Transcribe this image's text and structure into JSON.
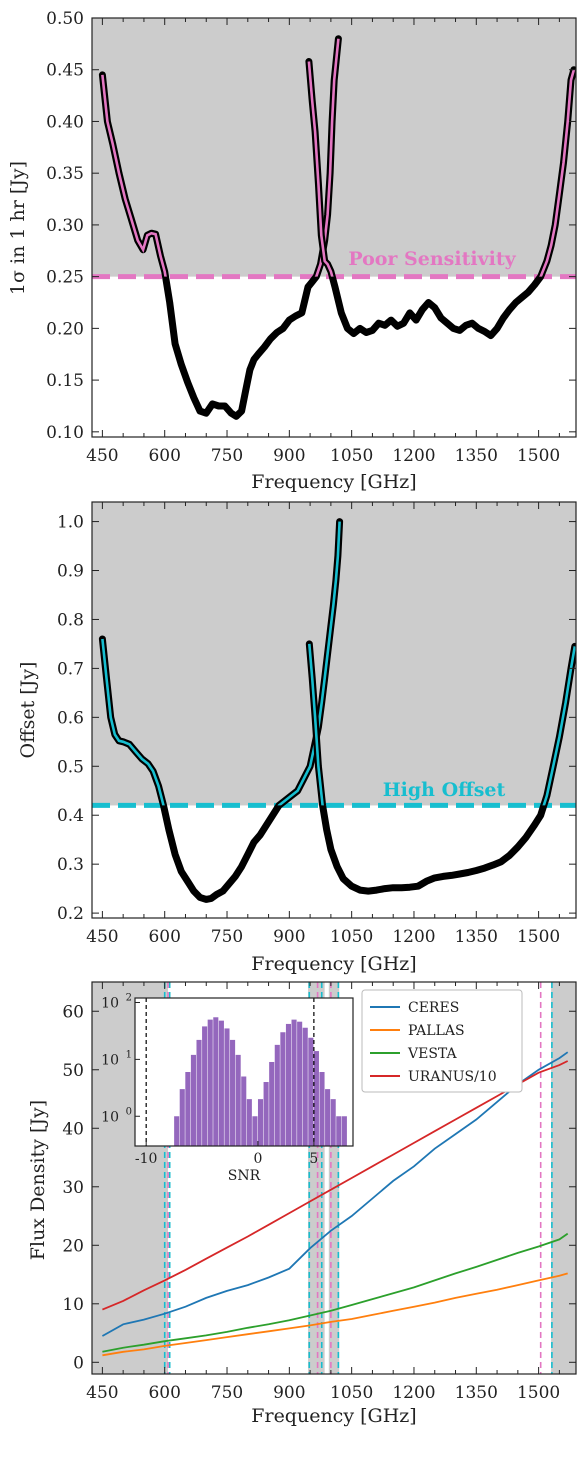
{
  "chart_data": [
    {
      "type": "line",
      "ylabel": "1σ in 1 hr [Jy]",
      "xlabel": "Frequency [GHz]",
      "xlim": [
        425,
        1590
      ],
      "ylim": [
        0.095,
        0.5
      ],
      "xticks": [
        "450",
        "600",
        "750",
        "900",
        "1050",
        "1200",
        "1350",
        "1500"
      ],
      "yticks": [
        "0.10",
        "0.15",
        "0.20",
        "0.25",
        "0.30",
        "0.35",
        "0.40",
        "0.45",
        "0.50"
      ],
      "grid": false,
      "shaded": "above-threshold",
      "shade_color": "#cccccc",
      "threshold": {
        "y": 0.25,
        "label": "Poor Sensitivity",
        "color": "#e377c2"
      },
      "series": [
        {
          "color": "#000000",
          "highlight": "#e377c2",
          "x": [
            450,
            462,
            475,
            490,
            505,
            520,
            535,
            548,
            558,
            568,
            578,
            590,
            600,
            612,
            625,
            640,
            655,
            670,
            685,
            700,
            715,
            730,
            745,
            760,
            772,
            785,
            795,
            805,
            815,
            825,
            840,
            855,
            870,
            885,
            900,
            915,
            930,
            945,
            955,
            965,
            975,
            985,
            992,
            998,
            1003,
            1008,
            1013,
            1018
          ],
          "y": [
            0.445,
            0.4,
            0.378,
            0.35,
            0.325,
            0.305,
            0.285,
            0.276,
            0.29,
            0.292,
            0.291,
            0.27,
            0.255,
            0.225,
            0.185,
            0.165,
            0.148,
            0.133,
            0.12,
            0.118,
            0.127,
            0.125,
            0.125,
            0.118,
            0.115,
            0.12,
            0.14,
            0.16,
            0.17,
            0.175,
            0.182,
            0.19,
            0.196,
            0.2,
            0.208,
            0.212,
            0.215,
            0.24,
            0.245,
            0.25,
            0.262,
            0.285,
            0.31,
            0.35,
            0.4,
            0.44,
            0.46,
            0.48
          ]
        },
        {
          "color": "#000000",
          "highlight": "#e377c2",
          "x": [
            947,
            955,
            962,
            970,
            977,
            985,
            992,
            1000,
            1010,
            1025,
            1040,
            1055,
            1070,
            1085,
            1100,
            1115,
            1130,
            1145,
            1160,
            1175,
            1190,
            1205,
            1220,
            1235,
            1250,
            1265,
            1280,
            1295,
            1310,
            1325,
            1340,
            1355,
            1370,
            1385,
            1400,
            1415,
            1430,
            1445,
            1460,
            1475,
            1490,
            1505,
            1520,
            1530,
            1540,
            1550,
            1560,
            1570,
            1578,
            1585
          ],
          "y": [
            0.458,
            0.42,
            0.39,
            0.34,
            0.29,
            0.265,
            0.262,
            0.255,
            0.24,
            0.215,
            0.2,
            0.195,
            0.2,
            0.196,
            0.198,
            0.205,
            0.203,
            0.208,
            0.202,
            0.205,
            0.215,
            0.208,
            0.218,
            0.225,
            0.22,
            0.21,
            0.205,
            0.2,
            0.198,
            0.203,
            0.205,
            0.2,
            0.197,
            0.193,
            0.2,
            0.21,
            0.218,
            0.225,
            0.23,
            0.235,
            0.242,
            0.25,
            0.265,
            0.28,
            0.3,
            0.33,
            0.36,
            0.4,
            0.44,
            0.45
          ]
        }
      ]
    },
    {
      "type": "line",
      "ylabel": "Offset [Jy]",
      "xlabel": "Frequency [GHz]",
      "xlim": [
        425,
        1590
      ],
      "ylim": [
        0.19,
        1.04
      ],
      "xticks": [
        "450",
        "600",
        "750",
        "900",
        "1050",
        "1200",
        "1350",
        "1500"
      ],
      "yticks": [
        "0.2",
        "0.3",
        "0.4",
        "0.5",
        "0.6",
        "0.7",
        "0.8",
        "0.9",
        "1.0"
      ],
      "grid": false,
      "shaded": "above-threshold",
      "shade_color": "#cccccc",
      "threshold": {
        "y": 0.42,
        "label": "High Offset",
        "color": "#17becf"
      },
      "series": [
        {
          "color": "#000000",
          "highlight": "#17becf",
          "x": [
            450,
            460,
            470,
            480,
            490,
            500,
            515,
            530,
            545,
            560,
            572,
            585,
            597,
            610,
            625,
            640,
            655,
            670,
            685,
            700,
            712,
            725,
            740,
            755,
            770,
            785,
            800,
            815,
            830,
            845,
            860,
            875,
            890,
            905,
            920,
            935,
            950,
            960,
            970,
            978,
            985,
            992,
            999,
            1006,
            1012,
            1017,
            1021
          ],
          "y": [
            0.76,
            0.68,
            0.6,
            0.565,
            0.552,
            0.55,
            0.545,
            0.53,
            0.515,
            0.505,
            0.49,
            0.46,
            0.42,
            0.37,
            0.32,
            0.285,
            0.265,
            0.245,
            0.232,
            0.228,
            0.23,
            0.238,
            0.245,
            0.26,
            0.275,
            0.295,
            0.32,
            0.345,
            0.36,
            0.38,
            0.4,
            0.42,
            0.43,
            0.44,
            0.45,
            0.475,
            0.5,
            0.54,
            0.58,
            0.63,
            0.68,
            0.73,
            0.78,
            0.83,
            0.88,
            0.93,
            1.0
          ]
        },
        {
          "color": "#000000",
          "highlight": "#17becf",
          "x": [
            948,
            955,
            962,
            970,
            980,
            990,
            1000,
            1015,
            1030,
            1050,
            1070,
            1090,
            1110,
            1130,
            1150,
            1170,
            1190,
            1210,
            1230,
            1250,
            1270,
            1290,
            1310,
            1330,
            1350,
            1370,
            1390,
            1410,
            1430,
            1450,
            1470,
            1490,
            1505,
            1520,
            1535,
            1550,
            1565,
            1578,
            1587
          ],
          "y": [
            0.75,
            0.68,
            0.6,
            0.5,
            0.42,
            0.37,
            0.33,
            0.295,
            0.27,
            0.255,
            0.247,
            0.245,
            0.247,
            0.25,
            0.252,
            0.252,
            0.253,
            0.255,
            0.265,
            0.272,
            0.275,
            0.277,
            0.28,
            0.283,
            0.287,
            0.292,
            0.298,
            0.305,
            0.318,
            0.335,
            0.355,
            0.38,
            0.4,
            0.44,
            0.5,
            0.56,
            0.63,
            0.7,
            0.745
          ]
        }
      ]
    },
    {
      "type": "line",
      "ylabel": "Flux Density [Jy]",
      "xlabel": "Frequency [GHz]",
      "xlim": [
        425,
        1590
      ],
      "ylim": [
        -2,
        65
      ],
      "xticks": [
        "450",
        "600",
        "750",
        "900",
        "1050",
        "1200",
        "1350",
        "1500"
      ],
      "yticks": [
        "0",
        "10",
        "20",
        "30",
        "40",
        "50",
        "60"
      ],
      "grid": false,
      "legend": "top-right",
      "shaded_bands": [
        [
          425,
          608
        ],
        [
          945,
          985
        ],
        [
          995,
          1020
        ],
        [
          1530,
          1590
        ]
      ],
      "shade_color": "#cccccc",
      "vlines": [
        {
          "x": 600,
          "color": "#17becf"
        },
        {
          "x": 612,
          "color": "#17becf"
        },
        {
          "x": 608,
          "color": "#e377c2"
        },
        {
          "x": 948,
          "color": "#17becf"
        },
        {
          "x": 968,
          "color": "#e377c2"
        },
        {
          "x": 978,
          "color": "#17becf"
        },
        {
          "x": 1000,
          "color": "#e377c2"
        },
        {
          "x": 1018,
          "color": "#17becf"
        },
        {
          "x": 1505,
          "color": "#e377c2"
        },
        {
          "x": 1532,
          "color": "#17becf"
        }
      ],
      "series": [
        {
          "name": "CERES",
          "color": "#1f77b4",
          "x": [
            450,
            500,
            550,
            600,
            650,
            700,
            750,
            800,
            850,
            900,
            950,
            1000,
            1050,
            1100,
            1150,
            1200,
            1250,
            1300,
            1350,
            1400,
            1450,
            1500,
            1550,
            1570
          ],
          "y": [
            4.5,
            6.5,
            7.3,
            8.3,
            9.5,
            11.0,
            12.2,
            13.2,
            14.5,
            16.0,
            19.5,
            22.5,
            25.0,
            28.0,
            31.0,
            33.5,
            36.5,
            39.0,
            41.5,
            44.5,
            47.5,
            50.0,
            52.0,
            53.0
          ]
        },
        {
          "name": "PALLAS",
          "color": "#ff7f0e",
          "x": [
            450,
            500,
            550,
            600,
            650,
            700,
            750,
            800,
            850,
            900,
            950,
            1000,
            1050,
            1100,
            1150,
            1200,
            1250,
            1300,
            1350,
            1400,
            1450,
            1500,
            1550,
            1570
          ],
          "y": [
            1.2,
            1.8,
            2.2,
            2.8,
            3.3,
            3.8,
            4.3,
            4.8,
            5.3,
            5.8,
            6.3,
            6.9,
            7.4,
            8.1,
            8.8,
            9.5,
            10.2,
            11.0,
            11.7,
            12.4,
            13.2,
            14.0,
            14.8,
            15.2
          ]
        },
        {
          "name": "VESTA",
          "color": "#2ca02c",
          "x": [
            450,
            500,
            550,
            600,
            650,
            700,
            750,
            800,
            850,
            900,
            950,
            1000,
            1050,
            1100,
            1150,
            1200,
            1250,
            1300,
            1350,
            1400,
            1450,
            1500,
            1550,
            1570
          ],
          "y": [
            1.8,
            2.5,
            3.0,
            3.6,
            4.1,
            4.6,
            5.2,
            5.9,
            6.5,
            7.2,
            8.0,
            8.8,
            9.8,
            10.8,
            11.8,
            12.8,
            14.0,
            15.2,
            16.3,
            17.5,
            18.7,
            19.8,
            21.0,
            22.0
          ]
        },
        {
          "name": "URANUS/10",
          "color": "#d62728",
          "x": [
            450,
            500,
            550,
            600,
            650,
            700,
            750,
            800,
            850,
            900,
            950,
            1000,
            1050,
            1100,
            1150,
            1200,
            1250,
            1300,
            1350,
            1400,
            1450,
            1500,
            1550,
            1570
          ],
          "y": [
            9.0,
            10.5,
            12.3,
            14.0,
            15.8,
            17.7,
            19.6,
            21.5,
            23.5,
            25.5,
            27.5,
            29.5,
            31.5,
            33.5,
            35.5,
            37.5,
            39.5,
            41.5,
            43.5,
            45.5,
            47.5,
            49.5,
            50.8,
            51.5
          ]
        }
      ],
      "inset": {
        "type": "bar",
        "xlabel": "SNR",
        "xlim": [
          -11,
          8.5
        ],
        "xticks": [
          "-10",
          "0",
          "5"
        ],
        "yticks": [
          "10^0",
          "10^1",
          "10^2"
        ],
        "yscale": "log",
        "ylim": [
          0.3,
          120
        ],
        "vlines": [
          -10,
          5
        ],
        "color": "#9467bd",
        "bins": [
          -7.5,
          -7.0,
          -6.5,
          -6.0,
          -5.5,
          -5.0,
          -4.5,
          -4.0,
          -3.5,
          -3.0,
          -2.5,
          -2.0,
          -1.5,
          -1.0,
          -0.5,
          0.0,
          0.5,
          1.0,
          1.5,
          2.0,
          2.5,
          3.0,
          3.5,
          4.0,
          4.5,
          5.0,
          5.5,
          6.0,
          6.5,
          7.0,
          7.5
        ],
        "counts": [
          1,
          3,
          6,
          12,
          22,
          38,
          50,
          55,
          48,
          35,
          22,
          12,
          5,
          2,
          1,
          2,
          4,
          9,
          18,
          30,
          42,
          50,
          46,
          36,
          24,
          14,
          6,
          3,
          2,
          1,
          1
        ]
      }
    }
  ],
  "panels": {
    "p1": {
      "ylabel": "1σ in 1 hr [Jy]",
      "xlabel": "Frequency [GHz]",
      "annotation": "Poor Sensitivity",
      "xticks": [
        "450",
        "600",
        "750",
        "900",
        "1050",
        "1200",
        "1350",
        "1500"
      ],
      "yticks": [
        "0.10",
        "0.15",
        "0.20",
        "0.25",
        "0.30",
        "0.35",
        "0.40",
        "0.45",
        "0.50"
      ]
    },
    "p2": {
      "ylabel": "Offset [Jy]",
      "xlabel": "Frequency [GHz]",
      "annotation": "High Offset",
      "xticks": [
        "450",
        "600",
        "750",
        "900",
        "1050",
        "1200",
        "1350",
        "1500"
      ],
      "yticks": [
        "0.2",
        "0.3",
        "0.4",
        "0.5",
        "0.6",
        "0.7",
        "0.8",
        "0.9",
        "1.0"
      ]
    },
    "p3": {
      "ylabel": "Flux Density [Jy]",
      "xlabel": "Frequency [GHz]",
      "xticks": [
        "450",
        "600",
        "750",
        "900",
        "1050",
        "1200",
        "1350",
        "1500"
      ],
      "yticks": [
        "0",
        "10",
        "20",
        "30",
        "40",
        "50",
        "60"
      ],
      "legend": [
        "CERES",
        "PALLAS",
        "VESTA",
        "URANUS/10"
      ],
      "inset": {
        "xlabel": "SNR",
        "xticks": [
          "-10",
          "0",
          "5"
        ],
        "yticks": [
          "10^0",
          "10^1",
          "10^2"
        ]
      }
    }
  }
}
